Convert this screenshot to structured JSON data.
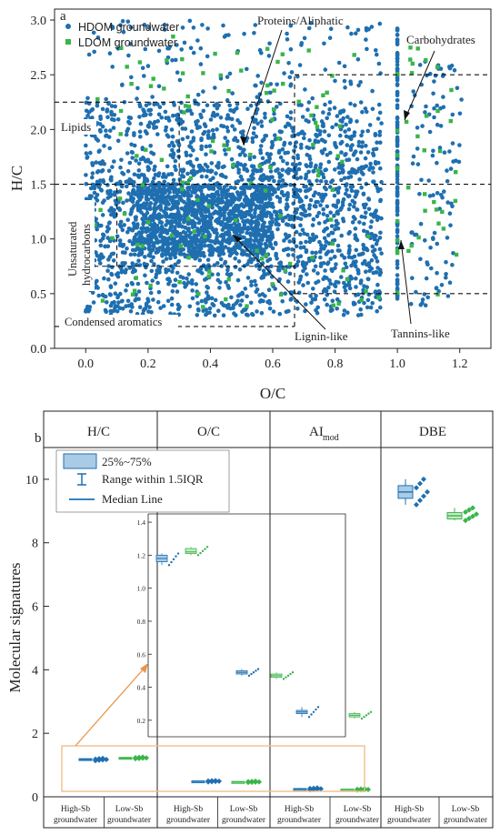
{
  "colors": {
    "hdom": "#1f6fb0",
    "ldom": "#39b54a",
    "box": "#a9cbe6",
    "arrow_orange": "#e8964a",
    "inset_box": "#f0c08a"
  },
  "panel_a": {
    "label": "a",
    "xlabel": "O/C",
    "ylabel": "H/C",
    "xticks": [
      "0.0",
      "0.2",
      "0.4",
      "0.6",
      "0.8",
      "1.0",
      "1.2"
    ],
    "yticks": [
      "0.0",
      "0.5",
      "1.0",
      "1.5",
      "2.0",
      "2.5",
      "3.0"
    ],
    "legend": [
      "HDOM groundwater",
      "LDOM groundwater"
    ],
    "regions": {
      "proteins": "Proteins/Aliphatic",
      "carbohydrates": "Carbohydrates",
      "lipids": "Lipids",
      "unsaturated_1": "Unsaturated",
      "unsaturated_2": "hydrocarbons",
      "condensed": "Condensed aromatics",
      "lignin": "Lignin-like",
      "tannins": "Tannins-like"
    }
  },
  "panel_b": {
    "label": "b",
    "ylabel": "Molecular signatures",
    "yticks": [
      "0",
      "2",
      "4",
      "6",
      "8",
      "10"
    ],
    "headers": [
      "H/C",
      "O/C",
      "AI",
      "mod",
      "DBE"
    ],
    "legend": [
      "25%~75%",
      "Range within 1.5IQR",
      "Median Line"
    ],
    "groups": [
      "High-Sb",
      "groundwater",
      "Low-Sb",
      "groundwater"
    ],
    "inset_yticks": [
      "0.2",
      "0.4",
      "0.6",
      "0.8",
      "1.0",
      "1.2",
      "1.4"
    ]
  },
  "chart_data": [
    {
      "type": "scatter",
      "title": "",
      "xlabel": "O/C",
      "ylabel": "H/C",
      "xlim": [
        -0.1,
        1.3
      ],
      "ylim": [
        0.0,
        3.1
      ],
      "legend_position": "top-left",
      "series": [
        {
          "name": "HDOM groundwater",
          "description_points": "dense cloud O/C 0.0-0.95, H/C 0.3-3.0; column at O/C 1.0; scatter O/C 1.05-1.2"
        },
        {
          "name": "LDOM groundwater",
          "description_points": "sparser points overlapping same range"
        }
      ],
      "region_bounds": {
        "Lipids": {
          "oc": [
            0.0,
            0.3
          ],
          "hc": [
            1.5,
            2.25
          ]
        },
        "Proteins/Aliphatic": {
          "oc": [
            0.3,
            0.67
          ],
          "hc": [
            1.5,
            2.25
          ]
        },
        "Carbohydrates": {
          "oc": [
            0.67,
            1.2
          ],
          "hc": [
            1.5,
            2.5
          ]
        },
        "Unsaturated hydrocarbons": {
          "oc": [
            0.0,
            0.1
          ],
          "hc": [
            0.75,
            1.5
          ]
        },
        "Lignin-like": {
          "oc": [
            0.1,
            0.67
          ],
          "hc": [
            0.75,
            1.5
          ]
        },
        "Tannins-like": {
          "oc": [
            0.67,
            1.2
          ],
          "hc": [
            0.5,
            1.5
          ]
        },
        "Condensed aromatics": {
          "oc": [
            0.0,
            0.67
          ],
          "hc": [
            0.2,
            0.75
          ]
        }
      }
    },
    {
      "type": "box",
      "title": "",
      "ylabel": "Molecular signatures",
      "ylim": [
        0,
        11
      ],
      "categories": [
        "H/C",
        "O/C",
        "AI_mod",
        "DBE"
      ],
      "series": [
        {
          "name": "High-Sb groundwater",
          "medians": [
            1.18,
            0.49,
            0.25,
            9.6
          ],
          "q1": [
            1.16,
            0.48,
            0.24,
            9.4
          ],
          "q3": [
            1.2,
            0.5,
            0.26,
            9.8
          ],
          "whisker_low": [
            1.14,
            0.47,
            0.22,
            9.2
          ],
          "whisker_high": [
            1.21,
            0.51,
            0.28,
            10.0
          ]
        },
        {
          "name": "Low-Sb groundwater",
          "medians": [
            1.22,
            0.47,
            0.23,
            8.85
          ],
          "q1": [
            1.21,
            0.46,
            0.22,
            8.75
          ],
          "q3": [
            1.24,
            0.48,
            0.24,
            8.95
          ],
          "whisker_low": [
            1.2,
            0.45,
            0.21,
            8.7
          ],
          "whisker_high": [
            1.25,
            0.49,
            0.25,
            9.1
          ]
        }
      ],
      "inset": {
        "ylim": [
          0.1,
          1.45
        ],
        "note": "zoom of H/C, O/C, AI_mod boxes"
      }
    }
  ]
}
